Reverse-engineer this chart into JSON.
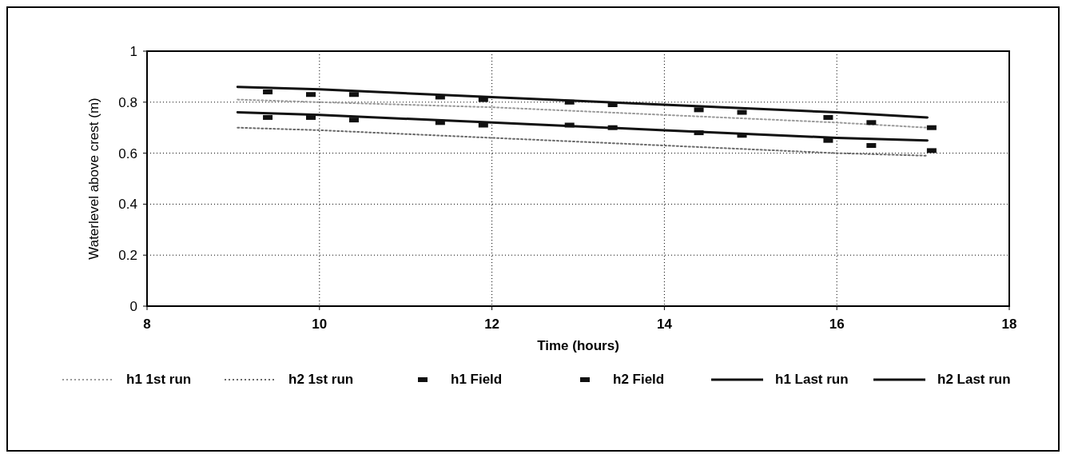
{
  "chart_data": {
    "type": "line",
    "xlabel": "Time (hours)",
    "ylabel": "Waterlevel above crest (m)",
    "xlim": [
      8,
      18
    ],
    "xticks": [
      8,
      10,
      12,
      14,
      16,
      18
    ],
    "ylim": [
      0,
      1
    ],
    "yticks": [
      0,
      0.2,
      0.4,
      0.6,
      0.8,
      1
    ],
    "grid": true,
    "legend": "bottom",
    "series": [
      {
        "name": "h1 1st run",
        "type": "line",
        "line_style": "dotted",
        "color": "#9a9a9a",
        "x": [
          9.05,
          10,
          12,
          14,
          16,
          17.05
        ],
        "values": [
          0.81,
          0.8,
          0.78,
          0.75,
          0.72,
          0.7
        ]
      },
      {
        "name": "h2 1st run",
        "type": "line",
        "line_style": "dotted",
        "color": "#6a6a6a",
        "x": [
          9.05,
          10,
          12,
          14,
          16,
          17.05
        ],
        "values": [
          0.7,
          0.69,
          0.66,
          0.63,
          0.6,
          0.59
        ]
      },
      {
        "name": "h1 Field",
        "type": "scatter",
        "marker": "square",
        "color": "#111111",
        "x": [
          9.4,
          9.9,
          10.4,
          11.4,
          11.9,
          12.9,
          13.4,
          14.4,
          14.9,
          15.9,
          16.4,
          17.1
        ],
        "values": [
          0.84,
          0.83,
          0.83,
          0.82,
          0.81,
          0.8,
          0.79,
          0.77,
          0.76,
          0.74,
          0.72,
          0.7
        ]
      },
      {
        "name": "h2 Field",
        "type": "scatter",
        "marker": "square",
        "color": "#111111",
        "x": [
          9.4,
          9.9,
          10.4,
          11.4,
          11.9,
          12.9,
          13.4,
          14.4,
          14.9,
          15.9,
          16.4,
          17.1
        ],
        "values": [
          0.74,
          0.74,
          0.73,
          0.72,
          0.71,
          0.71,
          0.7,
          0.68,
          0.67,
          0.65,
          0.63,
          0.61
        ]
      },
      {
        "name": "h1 Last run",
        "type": "line",
        "line_style": "solid",
        "color": "#111111",
        "x": [
          9.05,
          10,
          12,
          14,
          16,
          17.05
        ],
        "values": [
          0.86,
          0.85,
          0.82,
          0.79,
          0.76,
          0.74
        ]
      },
      {
        "name": "h2 Last run",
        "type": "line",
        "line_style": "solid",
        "color": "#111111",
        "x": [
          9.05,
          10,
          12,
          14,
          16,
          17.05
        ],
        "values": [
          0.76,
          0.75,
          0.72,
          0.69,
          0.66,
          0.65
        ]
      }
    ]
  }
}
